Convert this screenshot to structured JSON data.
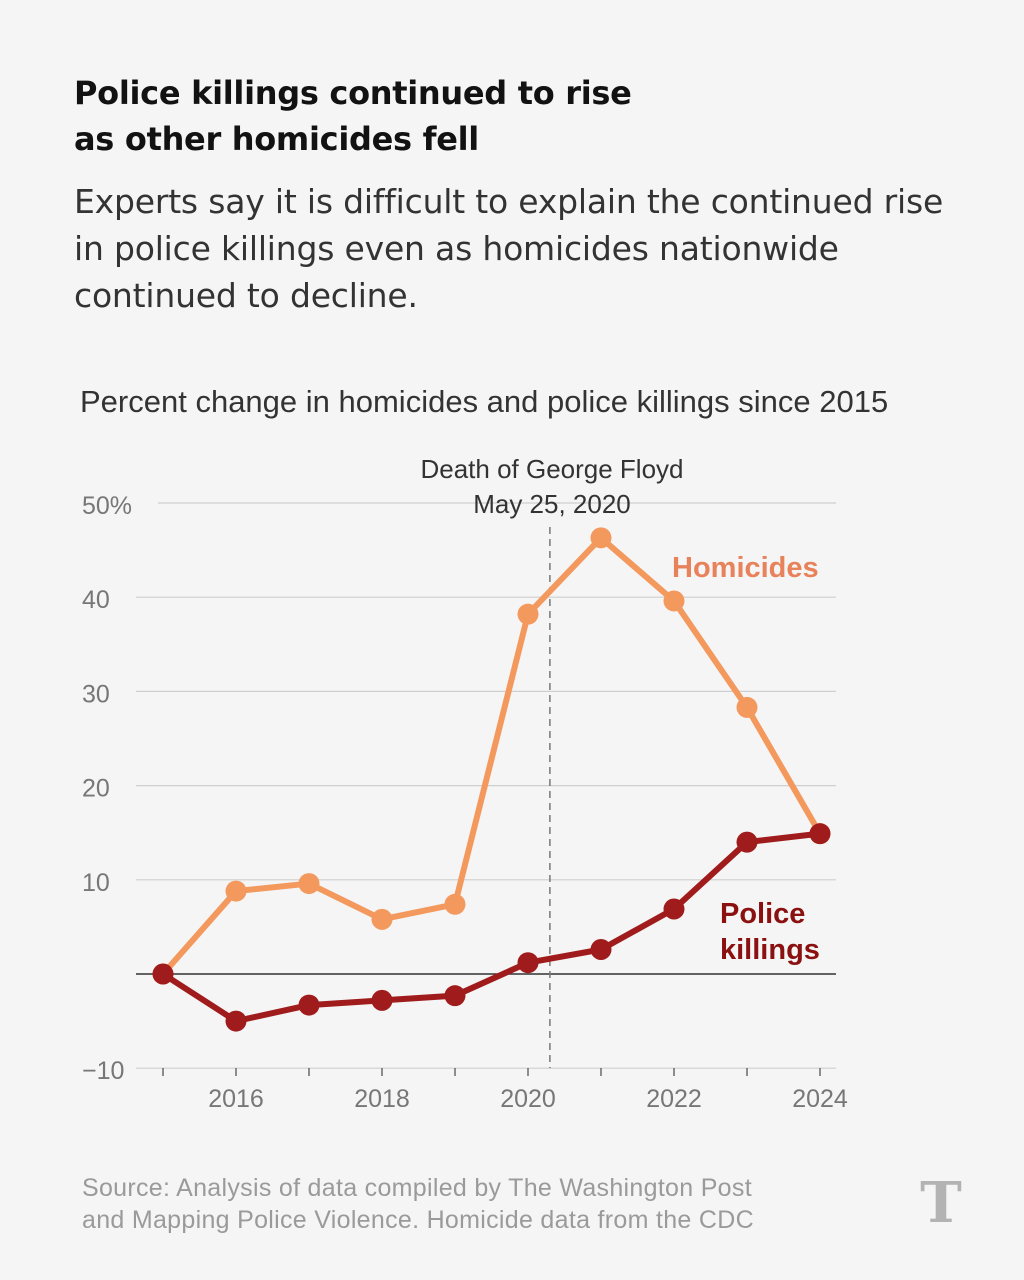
{
  "headline": {
    "line1": "Police killings continued to rise",
    "line2": "as other homicides fell"
  },
  "dek": {
    "line1": "Experts say it is difficult to explain the continued rise",
    "line2": "in police killings even as homicides nationwide",
    "line3": "continued to decline."
  },
  "chart_data": {
    "type": "line",
    "title": "Percent change in homicides and police killings since 2015",
    "x": [
      2015,
      2016,
      2017,
      2018,
      2019,
      2020,
      2021,
      2022,
      2023,
      2024
    ],
    "x_ticks": [
      "2016",
      "2018",
      "2020",
      "2022",
      "2024"
    ],
    "y_ticks": [
      "50%",
      "40",
      "30",
      "20",
      "10",
      "−10"
    ],
    "ylim": [
      -10,
      50
    ],
    "grid": true,
    "series": [
      {
        "name": "Homicides",
        "color": "#f4995e",
        "label_color": "#e8825a",
        "values": [
          0,
          8.8,
          9.6,
          5.8,
          7.4,
          38.2,
          46.3,
          39.6,
          28.3,
          14.9
        ]
      },
      {
        "name": "Police killings",
        "color": "#a01b1b",
        "label_color": "#8b1010",
        "values": [
          0,
          -5,
          -3.3,
          -2.8,
          -2.3,
          1.2,
          2.6,
          6.9,
          14,
          14.9
        ]
      }
    ],
    "labels": {
      "homicides": "Homicides",
      "police_line1": "Police",
      "police_line2": "killings"
    },
    "annotation": {
      "x": 2020.3,
      "line1": "Death of George Floyd",
      "line2": "May 25, 2020"
    }
  },
  "source": {
    "line1": "Source: Analysis of data compiled by The Washington Post",
    "line2": "and Mapping Police Violence. Homicide data from the CDC"
  },
  "logo": {
    "name": "nyt-t-logo",
    "text": "T"
  }
}
